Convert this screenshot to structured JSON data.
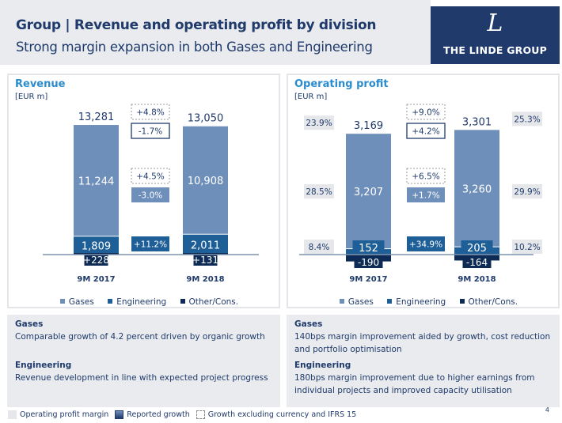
{
  "header": {
    "title": "Group | Revenue and operating profit by division",
    "subtitle": "Strong margin expansion in both Gases and Engineering",
    "logo_text": "THE LINDE GROUP",
    "logo_mark": "L"
  },
  "colors": {
    "gases": "#6f8fbb",
    "engineering": "#1f5f97",
    "other": "#0d2b55",
    "margin_box": "#e5e7ea",
    "heading": "#2a8ccf",
    "text": "#1f3a6b"
  },
  "legend": {
    "gases": "Gases",
    "engineering": "Engineering",
    "other": "Other/Cons."
  },
  "chart_data": [
    {
      "type": "bar",
      "stacked": true,
      "title": "Revenue",
      "ylabel": "[EUR m]",
      "categories": [
        "9M 2017",
        "9M 2018"
      ],
      "series": [
        {
          "name": "Gases",
          "values": [
            11244,
            10908
          ]
        },
        {
          "name": "Engineering",
          "values": [
            1809,
            2011
          ]
        },
        {
          "name": "Other/Cons.",
          "values": [
            228,
            131
          ],
          "labels": [
            "+228",
            "+131"
          ]
        }
      ],
      "totals": [
        "13,281",
        "13,050"
      ],
      "growth": {
        "total": {
          "reported": "-1.7%",
          "excl_currency_ifrs15": "+4.8%"
        },
        "gases": {
          "reported": "-3.0%",
          "excl_currency_ifrs15": "+4.5%"
        },
        "engineering": {
          "reported": "+11.2%"
        }
      }
    },
    {
      "type": "bar",
      "stacked": true,
      "title": "Operating profit",
      "ylabel": "[EUR m]",
      "categories": [
        "9M 2017",
        "9M 2018"
      ],
      "series": [
        {
          "name": "Gases",
          "values": [
            3207,
            3260
          ]
        },
        {
          "name": "Engineering",
          "values": [
            152,
            205
          ]
        },
        {
          "name": "Other/Cons.",
          "values": [
            -190,
            -164
          ]
        }
      ],
      "totals": [
        "3,169",
        "3,301"
      ],
      "margins": {
        "total": [
          "23.9%",
          "25.3%"
        ],
        "gases": [
          "28.5%",
          "29.9%"
        ],
        "engineering": [
          "8.4%",
          "10.2%"
        ]
      },
      "growth": {
        "total": {
          "reported": "+4.2%",
          "excl_currency_ifrs15": "+9.0%"
        },
        "gases": {
          "reported": "+1.7%",
          "excl_currency_ifrs15": "+6.5%"
        },
        "engineering": {
          "reported": "+34.9%"
        }
      }
    }
  ],
  "notes": {
    "left": {
      "gases_head": "Gases",
      "gases_text": "Comparable growth of 4.2 percent driven by organic growth",
      "eng_head": "Engineering",
      "eng_text": "Revenue development in line with expected project progress"
    },
    "right": {
      "gases_head": "Gases",
      "gases_text": "140bps margin improvement aided by growth, cost reduction and portfolio optimisation",
      "eng_head": "Engineering",
      "eng_text": "180bps margin improvement due to higher earnings from individual projects and improved capacity utilisation"
    }
  },
  "footer": {
    "margin": "Operating profit margin",
    "reported": "Reported growth",
    "excl": "Growth excluding currency and IFRS 15",
    "page": "4"
  }
}
